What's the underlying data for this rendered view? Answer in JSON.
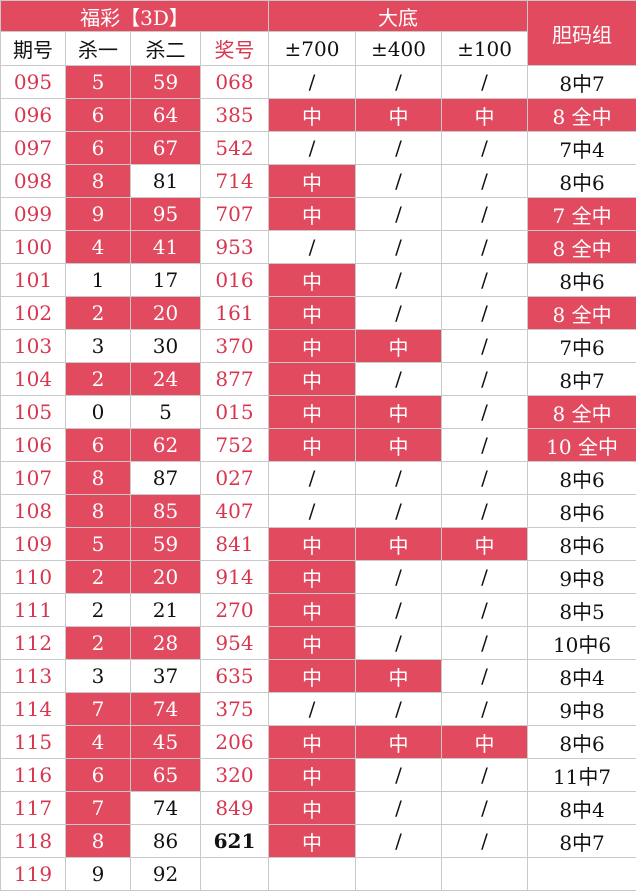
{
  "header": {
    "group1": "福彩【3D】",
    "group2": "大底",
    "group3": "胆码组",
    "cols": [
      "期号",
      "杀一",
      "杀二",
      "奖号",
      "±700",
      "±400",
      "±100"
    ]
  },
  "rows": [
    [
      "095",
      "5",
      "59",
      "068",
      "/",
      "/",
      "/",
      "8中7"
    ],
    [
      "096",
      "6",
      "64",
      "385",
      "中",
      "中",
      "中",
      "8 全中"
    ],
    [
      "097",
      "6",
      "67",
      "542",
      "/",
      "/",
      "/",
      "7中4"
    ],
    [
      "098",
      "8",
      "81",
      "714",
      "中",
      "/",
      "/",
      "8中6"
    ],
    [
      "099",
      "9",
      "95",
      "707",
      "中",
      "/",
      "/",
      "7 全中"
    ],
    [
      "100",
      "4",
      "41",
      "953",
      "/",
      "/",
      "/",
      "8 全中"
    ],
    [
      "101",
      "1",
      "17",
      "016",
      "中",
      "/",
      "/",
      "8中6"
    ],
    [
      "102",
      "2",
      "20",
      "161",
      "中",
      "/",
      "/",
      "8 全中"
    ],
    [
      "103",
      "3",
      "30",
      "370",
      "中",
      "中",
      "/",
      "7中6"
    ],
    [
      "104",
      "2",
      "24",
      "877",
      "中",
      "/",
      "/",
      "8中7"
    ],
    [
      "105",
      "0",
      "5",
      "015",
      "中",
      "中",
      "/",
      "8 全中"
    ],
    [
      "106",
      "6",
      "62",
      "752",
      "中",
      "中",
      "/",
      "10 全中"
    ],
    [
      "107",
      "8",
      "87",
      "027",
      "/",
      "/",
      "/",
      "8中6"
    ],
    [
      "108",
      "8",
      "85",
      "407",
      "/",
      "/",
      "/",
      "8中6"
    ],
    [
      "109",
      "5",
      "59",
      "841",
      "中",
      "中",
      "中",
      "8中6"
    ],
    [
      "110",
      "2",
      "20",
      "914",
      "中",
      "/",
      "/",
      "9中8"
    ],
    [
      "111",
      "2",
      "21",
      "270",
      "中",
      "/",
      "/",
      "8中5"
    ],
    [
      "112",
      "2",
      "28",
      "954",
      "中",
      "/",
      "/",
      "10中6"
    ],
    [
      "113",
      "3",
      "37",
      "635",
      "中",
      "中",
      "/",
      "8中4"
    ],
    [
      "114",
      "7",
      "74",
      "375",
      "/",
      "/",
      "/",
      "9中8"
    ],
    [
      "115",
      "4",
      "45",
      "206",
      "中",
      "中",
      "中",
      "8中6"
    ],
    [
      "116",
      "6",
      "65",
      "320",
      "中",
      "/",
      "/",
      "11中7"
    ],
    [
      "117",
      "7",
      "74",
      "849",
      "中",
      "/",
      "/",
      "8中4"
    ],
    [
      "118",
      "8",
      "86",
      "621",
      "中",
      "/",
      "/",
      "8中7"
    ],
    [
      "119",
      "9",
      "92",
      "",
      "",
      "",
      "",
      ""
    ]
  ],
  "colors": {
    "highlight": "#e24a60",
    "pink_text": "#d8364f"
  }
}
